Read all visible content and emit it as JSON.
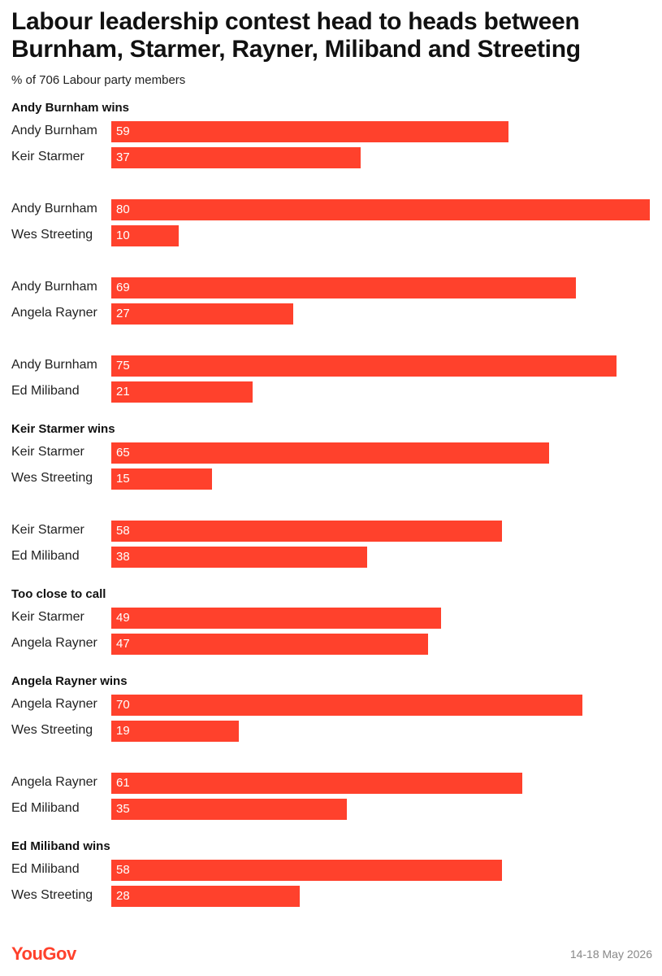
{
  "chart_data": {
    "type": "bar",
    "orientation": "horizontal",
    "title": "Labour leadership contest head to heads between Burnham, Starmer, Rayner, Miliband and Streeting",
    "subtitle": "% of 706 Labour party members",
    "xlim": [
      0,
      80
    ],
    "color": "#ff412c",
    "groups": [
      {
        "heading": "Andy Burnham wins",
        "pairs": [
          [
            {
              "name": "Andy Burnham",
              "value": 59
            },
            {
              "name": "Keir Starmer",
              "value": 37
            }
          ],
          [
            {
              "name": "Andy Burnham",
              "value": 80
            },
            {
              "name": "Wes Streeting",
              "value": 10
            }
          ],
          [
            {
              "name": "Andy Burnham",
              "value": 69
            },
            {
              "name": "Angela Rayner",
              "value": 27
            }
          ],
          [
            {
              "name": "Andy Burnham",
              "value": 75
            },
            {
              "name": "Ed Miliband",
              "value": 21
            }
          ]
        ]
      },
      {
        "heading": "Keir Starmer wins",
        "pairs": [
          [
            {
              "name": "Keir Starmer",
              "value": 65
            },
            {
              "name": "Wes Streeting",
              "value": 15
            }
          ],
          [
            {
              "name": "Keir Starmer",
              "value": 58
            },
            {
              "name": "Ed Miliband",
              "value": 38
            }
          ]
        ]
      },
      {
        "heading": "Too close to call",
        "pairs": [
          [
            {
              "name": "Keir Starmer",
              "value": 49
            },
            {
              "name": "Angela Rayner",
              "value": 47
            }
          ]
        ]
      },
      {
        "heading": "Angela Rayner wins",
        "pairs": [
          [
            {
              "name": "Angela Rayner",
              "value": 70
            },
            {
              "name": "Wes Streeting",
              "value": 19
            }
          ],
          [
            {
              "name": "Angela Rayner",
              "value": 61
            },
            {
              "name": "Ed Miliband",
              "value": 35
            }
          ]
        ]
      },
      {
        "heading": "Ed Miliband wins",
        "pairs": [
          [
            {
              "name": "Ed Miliband",
              "value": 58
            },
            {
              "name": "Wes Streeting",
              "value": 28
            }
          ]
        ]
      }
    ]
  },
  "footer": {
    "logo": "YouGov",
    "date": "14-18 May 2026"
  }
}
